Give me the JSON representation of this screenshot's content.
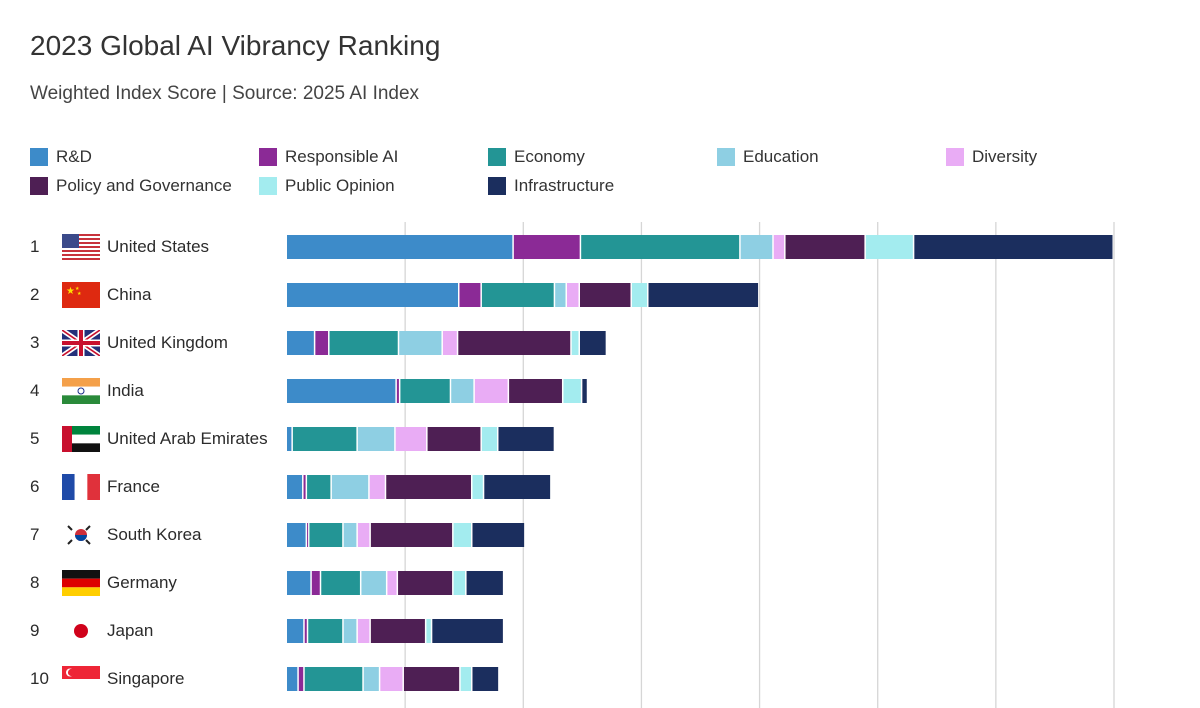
{
  "title": "2023 Global AI Vibrancy Ranking",
  "subtitle": "Weighted Index Score | Source: 2025 AI Index",
  "chart_data": {
    "type": "bar",
    "orientation": "horizontal",
    "stacked": true,
    "title": "2023 Global AI Vibrancy Ranking",
    "subtitle": "Weighted Index Score | Source: 2025 AI Index",
    "xlim": [
      0,
      70
    ],
    "grid": true,
    "grid_step": 10,
    "legend_position": "top",
    "ranks": [
      "1",
      "2",
      "3",
      "4",
      "5",
      "6",
      "7",
      "8",
      "9",
      "10"
    ],
    "categories": [
      "United States",
      "China",
      "United Kingdom",
      "India",
      "United Arab Emirates",
      "France",
      "South Korea",
      "Germany",
      "Japan",
      "Singapore"
    ],
    "flags": [
      "us-flag-icon",
      "cn-flag-icon",
      "gb-flag-icon",
      "in-flag-icon",
      "ae-flag-icon",
      "fr-flag-icon",
      "kr-flag-icon",
      "de-flag-icon",
      "jp-flag-icon",
      "sg-flag-icon"
    ],
    "series": [
      {
        "name": "R&D",
        "color": "#3D8BC9",
        "values": [
          19.2,
          14.6,
          2.4,
          9.3,
          0.5,
          1.4,
          1.7,
          2.1,
          1.5,
          1.0
        ]
      },
      {
        "name": "Responsible AI",
        "color": "#8B2A96",
        "values": [
          5.7,
          1.9,
          1.2,
          0.3,
          0.0,
          0.3,
          0.2,
          0.8,
          0.3,
          0.5
        ]
      },
      {
        "name": "Economy",
        "color": "#239595",
        "values": [
          13.5,
          6.2,
          5.9,
          4.3,
          5.5,
          2.1,
          2.9,
          3.4,
          3.0,
          5.0
        ]
      },
      {
        "name": "Education",
        "color": "#8ECFE3",
        "values": [
          2.8,
          1.0,
          3.7,
          2.0,
          3.2,
          3.2,
          1.2,
          2.2,
          1.2,
          1.4
        ]
      },
      {
        "name": "Diversity",
        "color": "#E9ACF5",
        "values": [
          1.0,
          1.1,
          1.3,
          2.9,
          2.7,
          1.4,
          1.1,
          0.9,
          1.1,
          2.0
        ]
      },
      {
        "name": "Policy and Governance",
        "color": "#4E1F54",
        "values": [
          6.8,
          4.4,
          9.6,
          4.6,
          4.6,
          7.3,
          7.0,
          4.7,
          4.7,
          4.8
        ]
      },
      {
        "name": "Public Opinion",
        "color": "#A3ECEF",
        "values": [
          4.1,
          1.4,
          0.7,
          1.6,
          1.4,
          1.0,
          1.6,
          1.1,
          0.5,
          1.0
        ]
      },
      {
        "name": "Infrastructure",
        "color": "#1B2E5E",
        "values": [
          16.9,
          9.4,
          2.3,
          0.5,
          4.8,
          5.7,
          4.5,
          3.2,
          6.1,
          2.3
        ]
      }
    ]
  }
}
